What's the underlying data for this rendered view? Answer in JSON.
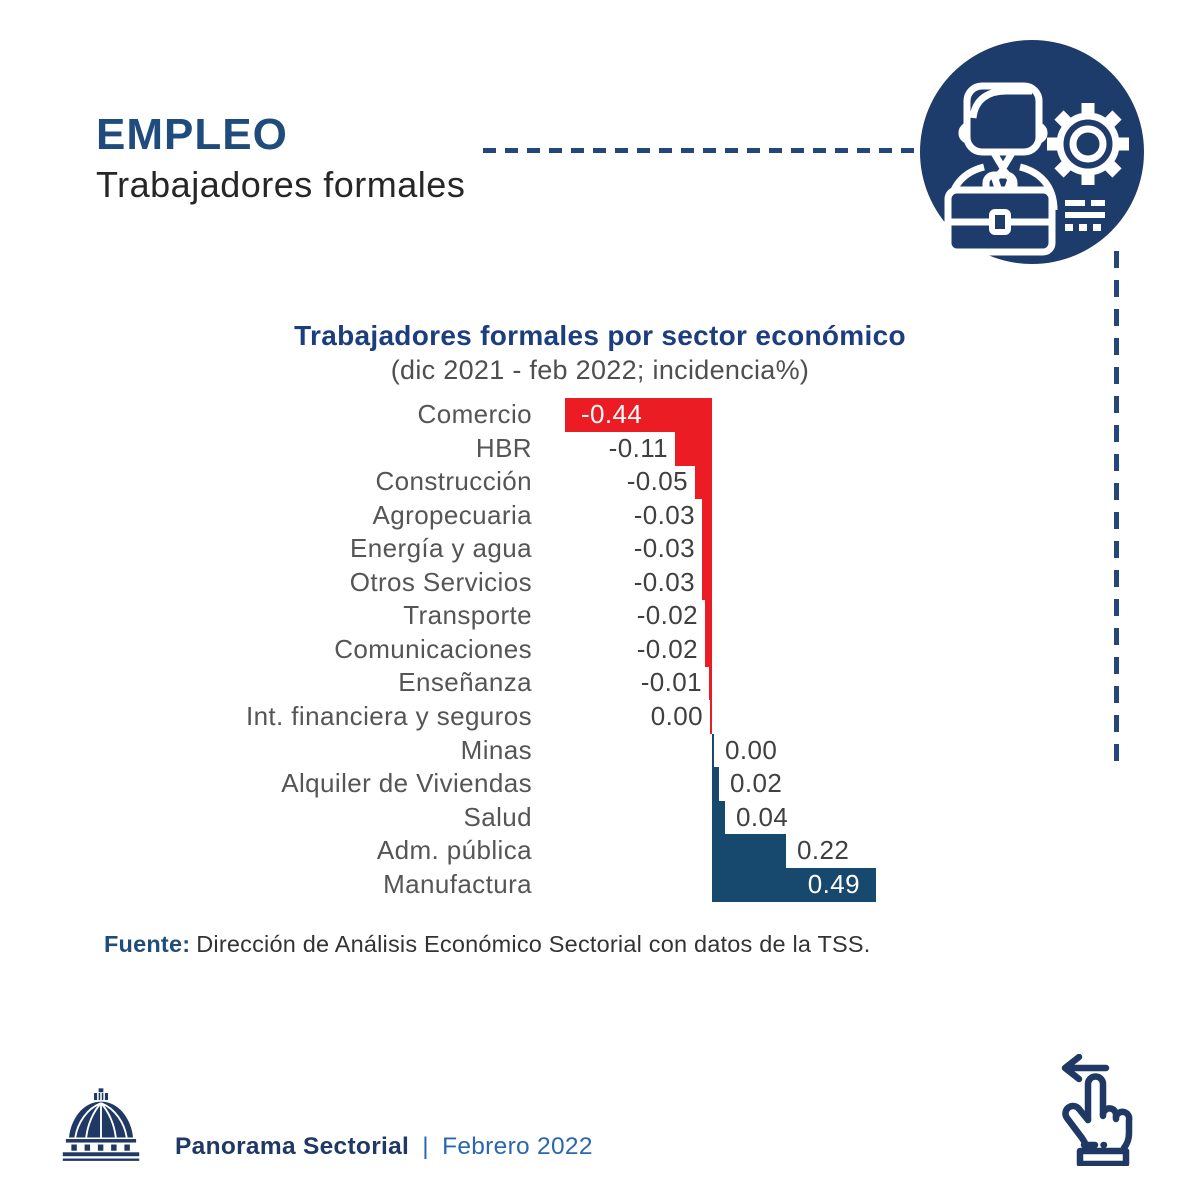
{
  "header": {
    "title": "EMPLEO",
    "subtitle": "Trabajadores formales"
  },
  "chart_data": {
    "type": "bar",
    "orientation": "horizontal",
    "title": "Trabajadores formales por sector económico",
    "subtitle": "(dic 2021 - feb 2022; incidencia%)",
    "categories": [
      "Comercio",
      "HBR",
      "Construcción",
      "Agropecuaria",
      "Energía y agua",
      "Otros Servicios",
      "Transporte",
      "Comunicaciones",
      "Enseñanza",
      "Int. financiera y seguros",
      "Minas",
      "Alquiler de Viviendas",
      "Salud",
      "Adm. pública",
      "Manufactura"
    ],
    "values": [
      -0.44,
      -0.11,
      -0.05,
      -0.03,
      -0.03,
      -0.03,
      -0.02,
      -0.02,
      -0.01,
      0.0,
      0.0,
      0.02,
      0.04,
      0.22,
      0.49
    ],
    "value_labels": [
      "-0.44",
      "-0.11",
      "-0.05",
      "-0.03",
      "-0.03",
      "-0.03",
      "-0.02",
      "-0.02",
      "-0.01",
      "0.00",
      "0.00",
      "0.02",
      "0.04",
      "0.22",
      "0.49"
    ],
    "groups": [
      "negative",
      "negative",
      "negative",
      "negative",
      "negative",
      "negative",
      "negative",
      "negative",
      "negative",
      "negative",
      "positive",
      "positive",
      "positive",
      "positive",
      "positive"
    ],
    "negative_color": "#EC1C24",
    "positive_color": "#17486D",
    "axis": {
      "visible": false
    },
    "xlim": [
      -0.5,
      0.55
    ],
    "legend": "none",
    "grid": false
  },
  "source": {
    "label": "Fuente:",
    "text": "Dirección de Análisis Económico Sectorial con datos de la TSS."
  },
  "footer": {
    "brand": "Panorama Sectorial",
    "separator": "|",
    "edition": "Febrero 2022"
  },
  "icons": {
    "emblem": "worker-gear-briefcase-icon",
    "logo": "government-dome-logo",
    "nav_hint": "swipe-left-hand-icon"
  },
  "colors": {
    "brand_navy": "#1E3C6B",
    "header_blue": "#1F4C7C",
    "chart_title_blue": "#1C3E7E",
    "negative_red": "#EC1C24",
    "positive_navy": "#17486D",
    "dashed_line": "#24477A",
    "footer_brand": "#1F3864",
    "footer_date": "#2B67AE"
  }
}
